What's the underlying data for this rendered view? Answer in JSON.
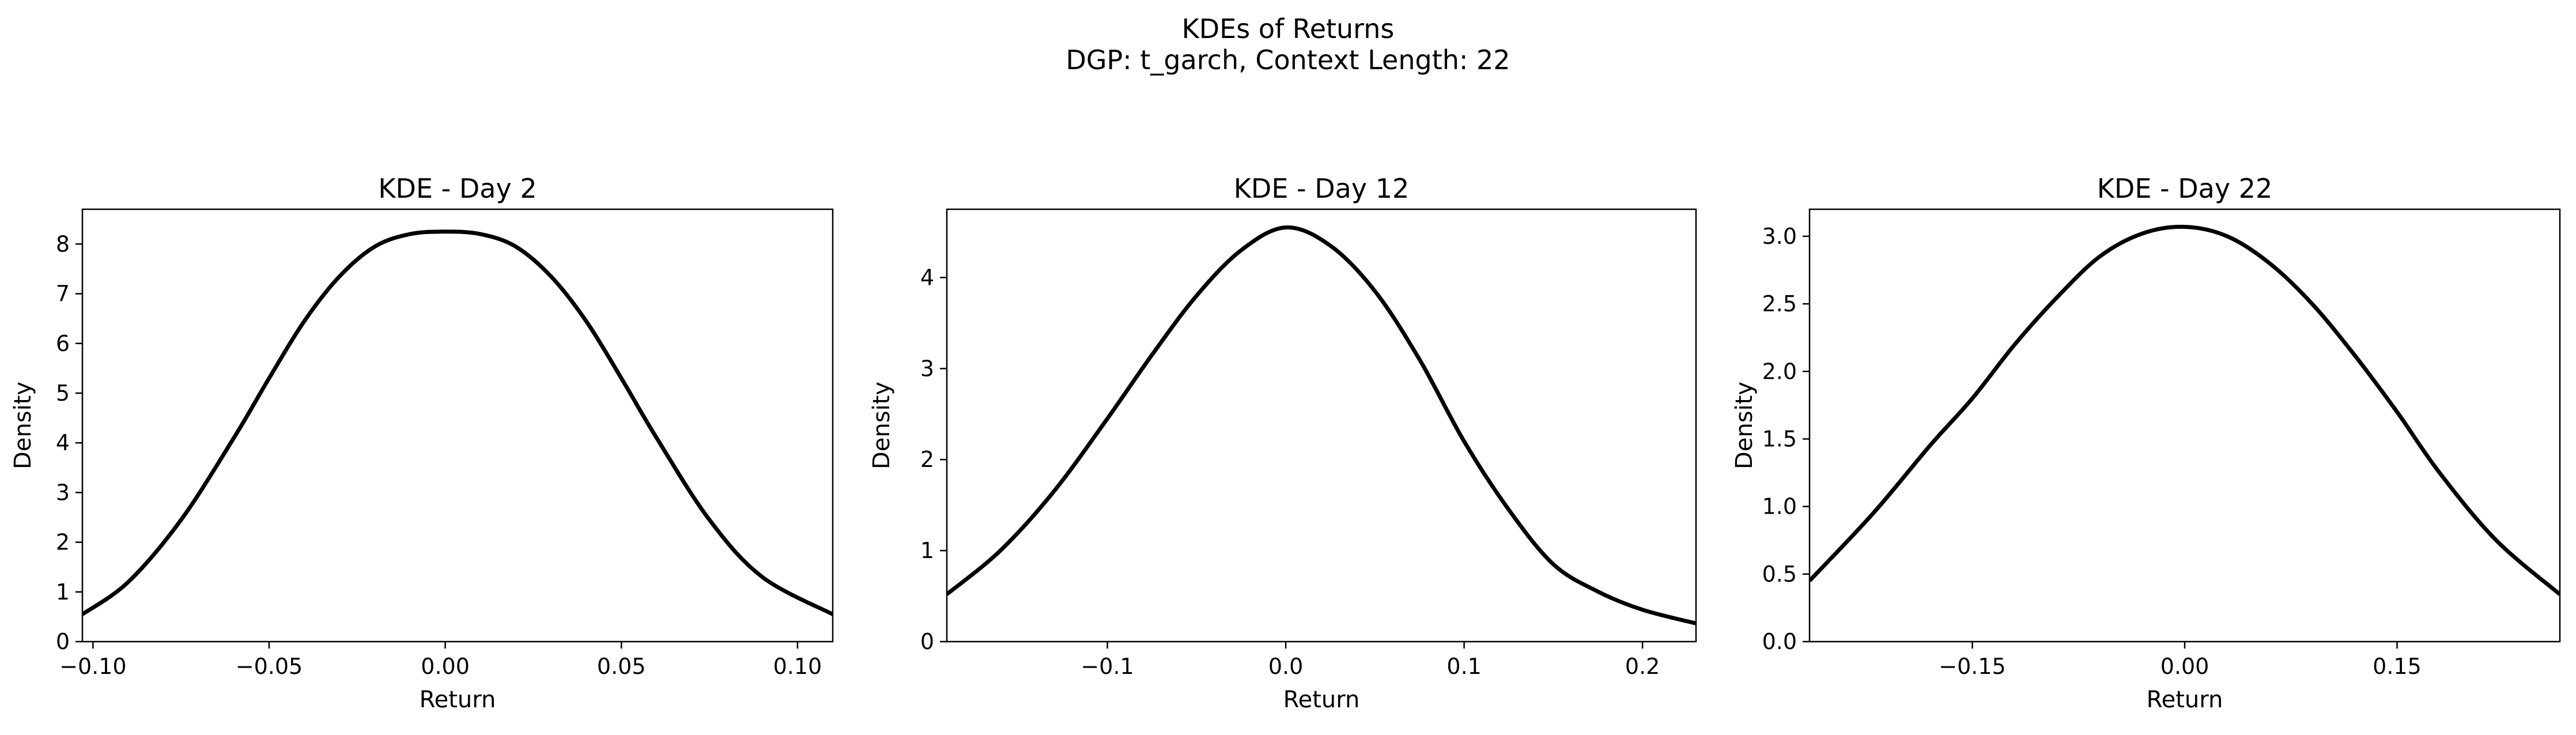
{
  "figure": {
    "title_line1": "KDEs of Returns",
    "title_line2": "DGP: t_garch, Context Length: 22"
  },
  "chart_data": [
    {
      "type": "line",
      "title": "KDE - Day 2",
      "xlabel": "Return",
      "ylabel": "Density",
      "xlim": [
        -0.103,
        0.11
      ],
      "ylim": [
        0,
        8.7
      ],
      "xticks": [
        -0.1,
        -0.05,
        0.0,
        0.05,
        0.1
      ],
      "xtick_labels": [
        "−0.10",
        "−0.05",
        "0.00",
        "0.05",
        "0.10"
      ],
      "yticks": [
        0,
        1,
        2,
        3,
        4,
        5,
        6,
        7,
        8
      ],
      "ytick_labels": [
        "0",
        "1",
        "2",
        "3",
        "4",
        "5",
        "6",
        "7",
        "8"
      ],
      "grid": false,
      "series": [
        {
          "color": "#000000",
          "x": [
            -0.103,
            -0.09,
            -0.075,
            -0.06,
            -0.05,
            -0.04,
            -0.03,
            -0.02,
            -0.01,
            0.0,
            0.01,
            0.02,
            0.03,
            0.04,
            0.05,
            0.06,
            0.075,
            0.09,
            0.11
          ],
          "y": [
            0.55,
            1.2,
            2.45,
            4.1,
            5.3,
            6.45,
            7.35,
            7.95,
            8.2,
            8.25,
            8.2,
            7.95,
            7.35,
            6.45,
            5.3,
            4.1,
            2.45,
            1.3,
            0.55
          ]
        }
      ]
    },
    {
      "type": "line",
      "title": "KDE - Day 12",
      "xlabel": "Return",
      "ylabel": "Density",
      "xlim": [
        -0.19,
        0.23
      ],
      "ylim": [
        0,
        4.75
      ],
      "xticks": [
        -0.1,
        0.0,
        0.1,
        0.2
      ],
      "xtick_labels": [
        "−0.1",
        "0.0",
        "0.1",
        "0.2"
      ],
      "yticks": [
        0,
        1,
        2,
        3,
        4
      ],
      "ytick_labels": [
        "0",
        "1",
        "2",
        "3",
        "4"
      ],
      "grid": false,
      "series": [
        {
          "color": "#000000",
          "x": [
            -0.19,
            -0.16,
            -0.13,
            -0.1,
            -0.075,
            -0.05,
            -0.025,
            0.0,
            0.025,
            0.05,
            0.075,
            0.1,
            0.125,
            0.15,
            0.175,
            0.2,
            0.23
          ],
          "y": [
            0.52,
            1.0,
            1.65,
            2.45,
            3.15,
            3.8,
            4.3,
            4.55,
            4.35,
            3.85,
            3.1,
            2.2,
            1.45,
            0.85,
            0.55,
            0.35,
            0.2
          ]
        }
      ]
    },
    {
      "type": "line",
      "title": "KDE - Day 22",
      "xlabel": "Return",
      "ylabel": "Density",
      "xlim": [
        -0.265,
        0.265
      ],
      "ylim": [
        0,
        3.2
      ],
      "xticks": [
        -0.15,
        0.0,
        0.15
      ],
      "xtick_labels": [
        "−0.15",
        "0.00",
        "0.15"
      ],
      "yticks": [
        0,
        0.5,
        1.0,
        1.5,
        2.0,
        2.5,
        3.0
      ],
      "ytick_labels": [
        "0.0",
        "0.5",
        "1.0",
        "1.5",
        "2.0",
        "2.5",
        "3.0"
      ],
      "grid": false,
      "series": [
        {
          "color": "#000000",
          "x": [
            -0.265,
            -0.22,
            -0.18,
            -0.15,
            -0.12,
            -0.09,
            -0.06,
            -0.03,
            0.0,
            0.03,
            0.06,
            0.09,
            0.12,
            0.15,
            0.18,
            0.22,
            0.265
          ],
          "y": [
            0.45,
            0.95,
            1.45,
            1.8,
            2.2,
            2.55,
            2.85,
            3.02,
            3.07,
            3.0,
            2.8,
            2.5,
            2.12,
            1.7,
            1.25,
            0.75,
            0.35
          ]
        }
      ]
    }
  ]
}
